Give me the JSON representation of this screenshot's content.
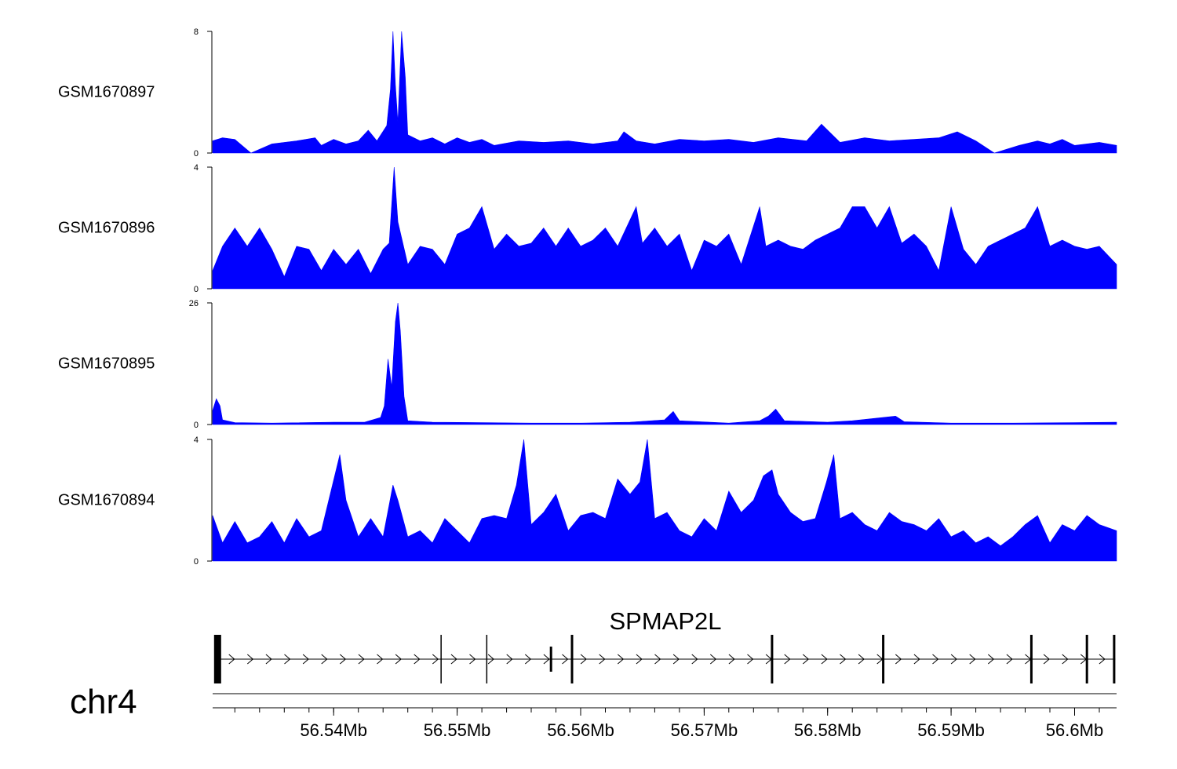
{
  "chart_data": {
    "type": "area",
    "x_unit": "Mb",
    "xlim": [
      56.5302,
      56.6034
    ],
    "colors": {
      "signal": "#0000ff",
      "gene": "#000000"
    },
    "tracks": [
      {
        "name": "GSM1670897",
        "ylim": [
          0,
          8
        ],
        "y_tick_labels": [
          "0",
          "8"
        ],
        "points": [
          [
            56.5302,
            0.8
          ],
          [
            56.531,
            1.0
          ],
          [
            56.532,
            0.9
          ],
          [
            56.5333,
            0
          ],
          [
            56.535,
            0.6
          ],
          [
            56.537,
            0.8
          ],
          [
            56.5385,
            1.0
          ],
          [
            56.539,
            0.5
          ],
          [
            56.54,
            0.9
          ],
          [
            56.541,
            0.6
          ],
          [
            56.542,
            0.8
          ],
          [
            56.5428,
            1.5
          ],
          [
            56.5435,
            0.8
          ],
          [
            56.5443,
            1.8
          ],
          [
            56.5446,
            4.2
          ],
          [
            56.5448,
            8.0
          ],
          [
            56.545,
            4.5
          ],
          [
            56.5452,
            2.0
          ],
          [
            56.5455,
            8.0
          ],
          [
            56.5458,
            5.0
          ],
          [
            56.546,
            1.2
          ],
          [
            56.547,
            0.8
          ],
          [
            56.548,
            1.0
          ],
          [
            56.549,
            0.6
          ],
          [
            56.55,
            1.0
          ],
          [
            56.551,
            0.7
          ],
          [
            56.552,
            0.9
          ],
          [
            56.553,
            0.5
          ],
          [
            56.555,
            0.8
          ],
          [
            56.557,
            0.7
          ],
          [
            56.559,
            0.8
          ],
          [
            56.561,
            0.6
          ],
          [
            56.563,
            0.8
          ],
          [
            56.5635,
            1.4
          ],
          [
            56.5645,
            0.8
          ],
          [
            56.566,
            0.6
          ],
          [
            56.568,
            0.9
          ],
          [
            56.57,
            0.8
          ],
          [
            56.572,
            0.9
          ],
          [
            56.574,
            0.7
          ],
          [
            56.576,
            1.0
          ],
          [
            56.5783,
            0.8
          ],
          [
            56.5795,
            1.9
          ],
          [
            56.581,
            0.7
          ],
          [
            56.583,
            1.0
          ],
          [
            56.585,
            0.8
          ],
          [
            56.587,
            0.9
          ],
          [
            56.589,
            1.0
          ],
          [
            56.5905,
            1.4
          ],
          [
            56.592,
            0.8
          ],
          [
            56.5935,
            0
          ],
          [
            56.5955,
            0.5
          ],
          [
            56.597,
            0.8
          ],
          [
            56.598,
            0.6
          ],
          [
            56.599,
            0.9
          ],
          [
            56.6,
            0.5
          ],
          [
            56.602,
            0.7
          ],
          [
            56.6034,
            0.5
          ]
        ]
      },
      {
        "name": "GSM1670896",
        "ylim": [
          0,
          4
        ],
        "y_tick_labels": [
          "0",
          "4"
        ],
        "points": [
          [
            56.5302,
            0.6
          ],
          [
            56.531,
            1.4
          ],
          [
            56.532,
            2.0
          ],
          [
            56.533,
            1.4
          ],
          [
            56.534,
            2.0
          ],
          [
            56.535,
            1.3
          ],
          [
            56.536,
            0.4
          ],
          [
            56.537,
            1.4
          ],
          [
            56.538,
            1.3
          ],
          [
            56.539,
            0.6
          ],
          [
            56.54,
            1.3
          ],
          [
            56.541,
            0.8
          ],
          [
            56.542,
            1.3
          ],
          [
            56.543,
            0.5
          ],
          [
            56.544,
            1.3
          ],
          [
            56.5445,
            1.5
          ],
          [
            56.5449,
            4.0
          ],
          [
            56.5452,
            2.2
          ],
          [
            56.546,
            0.8
          ],
          [
            56.547,
            1.4
          ],
          [
            56.548,
            1.3
          ],
          [
            56.549,
            0.8
          ],
          [
            56.55,
            1.8
          ],
          [
            56.551,
            2.0
          ],
          [
            56.552,
            2.7
          ],
          [
            56.553,
            1.3
          ],
          [
            56.554,
            1.8
          ],
          [
            56.555,
            1.4
          ],
          [
            56.556,
            1.5
          ],
          [
            56.557,
            2.0
          ],
          [
            56.558,
            1.4
          ],
          [
            56.559,
            2.0
          ],
          [
            56.56,
            1.4
          ],
          [
            56.561,
            1.6
          ],
          [
            56.562,
            2.0
          ],
          [
            56.563,
            1.4
          ],
          [
            56.5645,
            2.7
          ],
          [
            56.565,
            1.5
          ],
          [
            56.566,
            2.0
          ],
          [
            56.567,
            1.4
          ],
          [
            56.568,
            1.8
          ],
          [
            56.569,
            0.6
          ],
          [
            56.57,
            1.6
          ],
          [
            56.571,
            1.4
          ],
          [
            56.572,
            1.8
          ],
          [
            56.573,
            0.8
          ],
          [
            56.5745,
            2.7
          ],
          [
            56.575,
            1.4
          ],
          [
            56.576,
            1.6
          ],
          [
            56.577,
            1.4
          ],
          [
            56.578,
            1.3
          ],
          [
            56.579,
            1.6
          ],
          [
            56.58,
            1.8
          ],
          [
            56.581,
            2.0
          ],
          [
            56.582,
            2.7
          ],
          [
            56.583,
            2.7
          ],
          [
            56.584,
            2.0
          ],
          [
            56.585,
            2.7
          ],
          [
            56.586,
            1.5
          ],
          [
            56.587,
            1.8
          ],
          [
            56.588,
            1.4
          ],
          [
            56.589,
            0.6
          ],
          [
            56.59,
            2.7
          ],
          [
            56.591,
            1.3
          ],
          [
            56.592,
            0.8
          ],
          [
            56.593,
            1.4
          ],
          [
            56.594,
            1.6
          ],
          [
            56.595,
            1.8
          ],
          [
            56.596,
            2.0
          ],
          [
            56.597,
            2.7
          ],
          [
            56.598,
            1.4
          ],
          [
            56.599,
            1.6
          ],
          [
            56.6,
            1.4
          ],
          [
            56.601,
            1.3
          ],
          [
            56.602,
            1.4
          ],
          [
            56.6034,
            0.8
          ]
        ]
      },
      {
        "name": "GSM1670895",
        "ylim": [
          0,
          26
        ],
        "y_tick_labels": [
          "0",
          "26"
        ],
        "points": [
          [
            56.5302,
            3.0
          ],
          [
            56.5305,
            5.5
          ],
          [
            56.5308,
            4.0
          ],
          [
            56.531,
            1.0
          ],
          [
            56.532,
            0.4
          ],
          [
            56.535,
            0.3
          ],
          [
            56.54,
            0.5
          ],
          [
            56.5425,
            0.5
          ],
          [
            56.5438,
            1.5
          ],
          [
            56.5441,
            4.0
          ],
          [
            56.5444,
            14.0
          ],
          [
            56.5447,
            8.0
          ],
          [
            56.545,
            22.0
          ],
          [
            56.5452,
            26.0
          ],
          [
            56.5454,
            20.0
          ],
          [
            56.5457,
            6.0
          ],
          [
            56.546,
            0.8
          ],
          [
            56.548,
            0.5
          ],
          [
            56.552,
            0.4
          ],
          [
            56.556,
            0.3
          ],
          [
            56.56,
            0.3
          ],
          [
            56.564,
            0.5
          ],
          [
            56.5668,
            1.0
          ],
          [
            56.5675,
            2.8
          ],
          [
            56.568,
            0.8
          ],
          [
            56.572,
            0.3
          ],
          [
            56.5745,
            0.8
          ],
          [
            56.5752,
            1.8
          ],
          [
            56.5758,
            3.3
          ],
          [
            56.5765,
            0.8
          ],
          [
            56.58,
            0.5
          ],
          [
            56.582,
            0.8
          ],
          [
            56.5855,
            1.8
          ],
          [
            56.5862,
            0.6
          ],
          [
            56.59,
            0.3
          ],
          [
            56.595,
            0.3
          ],
          [
            56.6,
            0.4
          ],
          [
            56.6034,
            0.5
          ]
        ]
      },
      {
        "name": "GSM1670894",
        "ylim": [
          0,
          4
        ],
        "y_tick_labels": [
          "0",
          "4"
        ],
        "points": [
          [
            56.5302,
            1.5
          ],
          [
            56.531,
            0.6
          ],
          [
            56.532,
            1.3
          ],
          [
            56.533,
            0.6
          ],
          [
            56.534,
            0.8
          ],
          [
            56.535,
            1.3
          ],
          [
            56.536,
            0.6
          ],
          [
            56.537,
            1.4
          ],
          [
            56.538,
            0.8
          ],
          [
            56.539,
            1.0
          ],
          [
            56.5405,
            3.5
          ],
          [
            56.541,
            2.0
          ],
          [
            56.542,
            0.8
          ],
          [
            56.543,
            1.4
          ],
          [
            56.544,
            0.8
          ],
          [
            56.5448,
            2.5
          ],
          [
            56.5452,
            2.0
          ],
          [
            56.546,
            0.8
          ],
          [
            56.547,
            1.0
          ],
          [
            56.548,
            0.6
          ],
          [
            56.549,
            1.4
          ],
          [
            56.55,
            1.0
          ],
          [
            56.551,
            0.6
          ],
          [
            56.552,
            1.4
          ],
          [
            56.553,
            1.5
          ],
          [
            56.554,
            1.4
          ],
          [
            56.5548,
            2.5
          ],
          [
            56.5554,
            4.0
          ],
          [
            56.556,
            1.2
          ],
          [
            56.557,
            1.6
          ],
          [
            56.558,
            2.2
          ],
          [
            56.559,
            1.0
          ],
          [
            56.56,
            1.5
          ],
          [
            56.561,
            1.6
          ],
          [
            56.562,
            1.4
          ],
          [
            56.563,
            2.7
          ],
          [
            56.564,
            2.2
          ],
          [
            56.5648,
            2.6
          ],
          [
            56.5654,
            4.0
          ],
          [
            56.566,
            1.4
          ],
          [
            56.567,
            1.6
          ],
          [
            56.568,
            1.0
          ],
          [
            56.569,
            0.8
          ],
          [
            56.57,
            1.4
          ],
          [
            56.571,
            1.0
          ],
          [
            56.572,
            2.3
          ],
          [
            56.573,
            1.6
          ],
          [
            56.574,
            2.0
          ],
          [
            56.5748,
            2.8
          ],
          [
            56.5755,
            3.0
          ],
          [
            56.576,
            2.2
          ],
          [
            56.577,
            1.6
          ],
          [
            56.578,
            1.3
          ],
          [
            56.579,
            1.4
          ],
          [
            56.5799,
            2.6
          ],
          [
            56.5805,
            3.5
          ],
          [
            56.581,
            1.4
          ],
          [
            56.582,
            1.6
          ],
          [
            56.583,
            1.2
          ],
          [
            56.584,
            1.0
          ],
          [
            56.585,
            1.6
          ],
          [
            56.586,
            1.3
          ],
          [
            56.587,
            1.2
          ],
          [
            56.588,
            1.0
          ],
          [
            56.589,
            1.4
          ],
          [
            56.59,
            0.8
          ],
          [
            56.591,
            1.0
          ],
          [
            56.592,
            0.6
          ],
          [
            56.593,
            0.8
          ],
          [
            56.594,
            0.5
          ],
          [
            56.595,
            0.8
          ],
          [
            56.596,
            1.2
          ],
          [
            56.597,
            1.5
          ],
          [
            56.598,
            0.6
          ],
          [
            56.599,
            1.2
          ],
          [
            56.6,
            1.0
          ],
          [
            56.601,
            1.5
          ],
          [
            56.602,
            1.2
          ],
          [
            56.6034,
            1.0
          ]
        ]
      }
    ],
    "gene": {
      "name": "SPMAP2L",
      "strand": "+",
      "start": 56.5305,
      "end": 56.6033,
      "exons": [
        {
          "pos": 56.5306,
          "size": "large"
        },
        {
          "pos": 56.5487,
          "size": "small"
        },
        {
          "pos": 56.5524,
          "size": "small"
        },
        {
          "pos": 56.5576,
          "size": "mini"
        },
        {
          "pos": 56.5593,
          "size": "medium"
        },
        {
          "pos": 56.5755,
          "size": "medium"
        },
        {
          "pos": 56.5845,
          "size": "medium"
        },
        {
          "pos": 56.5965,
          "size": "medium"
        },
        {
          "pos": 56.601,
          "size": "medium"
        },
        {
          "pos": 56.6032,
          "size": "medium"
        }
      ]
    },
    "chromosome": "chr4",
    "x_ticks": [
      {
        "value": 56.54,
        "label": "56.54Mb"
      },
      {
        "value": 56.55,
        "label": "56.55Mb"
      },
      {
        "value": 56.56,
        "label": "56.56Mb"
      },
      {
        "value": 56.57,
        "label": "56.57Mb"
      },
      {
        "value": 56.58,
        "label": "56.58Mb"
      },
      {
        "value": 56.59,
        "label": "56.59Mb"
      },
      {
        "value": 56.6,
        "label": "56.6Mb"
      }
    ],
    "minor_tick_step": 0.002
  }
}
